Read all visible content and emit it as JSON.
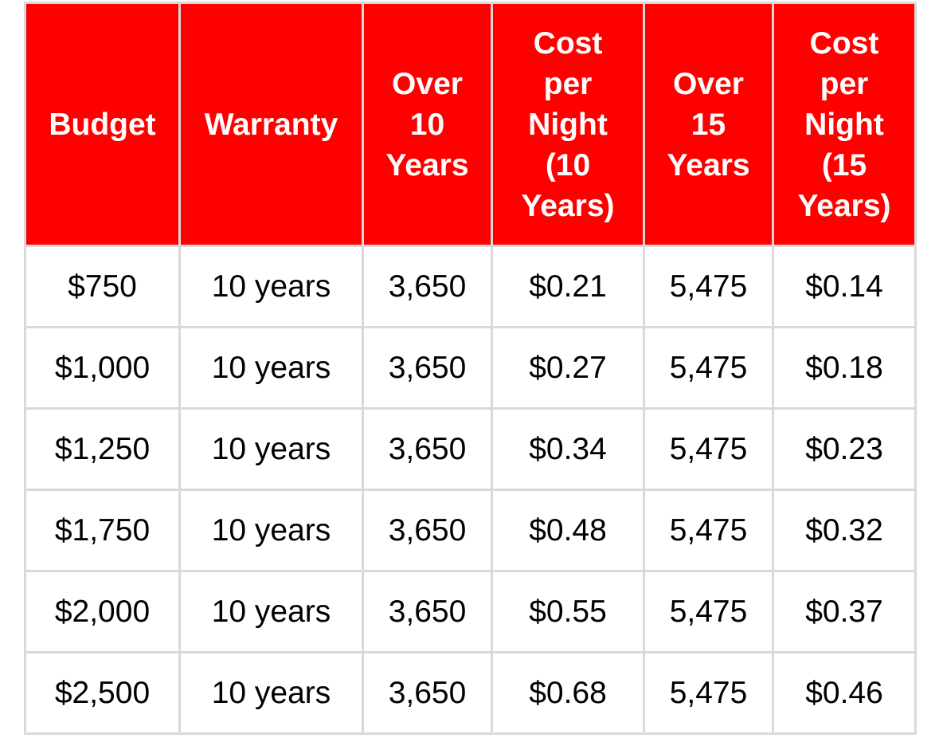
{
  "table": {
    "header_color": "#ff0000",
    "headers": [
      "Budget",
      "Warranty",
      "Over 10 Years",
      "Cost per Night (10 Years)",
      "Over 15 Years",
      "Cost per Night (15 Years)"
    ],
    "rows": [
      [
        "$750",
        "10 years",
        "3,650",
        "$0.21",
        "5,475",
        "$0.14"
      ],
      [
        "$1,000",
        "10 years",
        "3,650",
        "$0.27",
        "5,475",
        "$0.18"
      ],
      [
        "$1,250",
        "10 years",
        "3,650",
        "$0.34",
        "5,475",
        "$0.23"
      ],
      [
        "$1,750",
        "10 years",
        "3,650",
        "$0.48",
        "5,475",
        "$0.32"
      ],
      [
        "$2,000",
        "10 years",
        "3,650",
        "$0.55",
        "5,475",
        "$0.37"
      ],
      [
        "$2,500",
        "10 years",
        "3,650",
        "$0.68",
        "5,475",
        "$0.46"
      ]
    ]
  }
}
